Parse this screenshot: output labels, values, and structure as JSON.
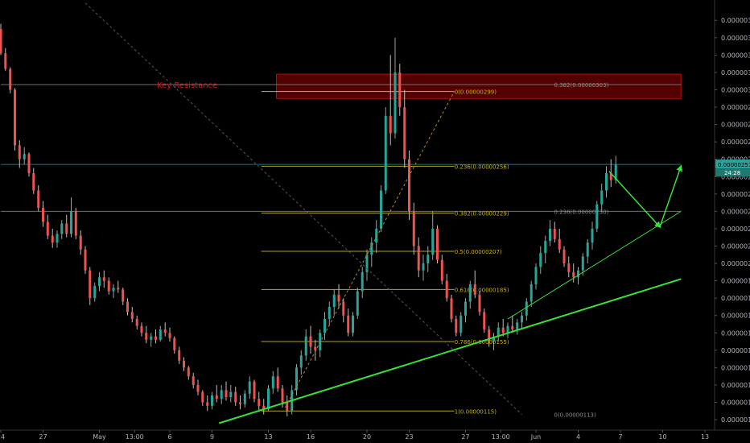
{
  "chart_data": {
    "type": "candlestick",
    "y_axis": {
      "min": 1.04e-06,
      "max": 3.48e-06,
      "ticks": [
        "0.00000110",
        "0.00000120",
        "0.00000130",
        "0.00000140",
        "0.00000150",
        "0.00000160",
        "0.00000170",
        "0.00000180",
        "0.00000190",
        "0.00000200",
        "0.00000210",
        "0.00000220",
        "0.00000230",
        "0.00000240",
        "0.00000250",
        "0.00000260",
        "0.00000270",
        "0.00000280",
        "0.00000290",
        "0.00000300",
        "0.00000310",
        "0.00000320",
        "0.00000330",
        "0.00000340"
      ]
    },
    "x_axis": {
      "ticks": [
        {
          "label": "24",
          "day": 0
        },
        {
          "label": "27",
          "day": 3
        },
        {
          "label": "May",
          "day": 7
        },
        {
          "label": "13:00",
          "day": 9.5
        },
        {
          "label": "6",
          "day": 12
        },
        {
          "label": "9",
          "day": 15
        },
        {
          "label": "13",
          "day": 19
        },
        {
          "label": "16",
          "day": 22
        },
        {
          "label": "20",
          "day": 26
        },
        {
          "label": "23",
          "day": 29
        },
        {
          "label": "27",
          "day": 33
        },
        {
          "label": "13:00",
          "day": 35.5
        },
        {
          "label": "Jun",
          "day": 38
        },
        {
          "label": "4",
          "day": 41
        },
        {
          "label": "7",
          "day": 44
        },
        {
          "label": "10",
          "day": 47
        },
        {
          "label": "13",
          "day": 50
        }
      ]
    },
    "current_price": {
      "label": "0.00000257",
      "value": 2.57e-06,
      "timer": "24:28"
    },
    "key_resistance": {
      "label": "Key Resistance",
      "zone_top": 3.09e-06,
      "zone_bottom": 2.95e-06,
      "zone_day_start": 19,
      "zone_day_end": 48.3,
      "line_value": 3.03e-06
    },
    "horizontal_lines": [
      {
        "value": 3.03e-06,
        "day_start": 0,
        "day_end": 48.3,
        "color": "#6f6f6f"
      },
      {
        "value": 2.3e-06,
        "day_start": 0,
        "day_end": 48.3,
        "color": "#6f6f6f"
      },
      {
        "value": 2.57e-06,
        "day_start": 0,
        "day_end": 48.3,
        "color": "#2d6e6e"
      }
    ],
    "fib_main": {
      "day_start": 18.5,
      "day_end": 32.2,
      "levels": [
        {
          "label": "0(0.00000299)",
          "value": 2.99e-06
        },
        {
          "label": "0.236(0.00000256)",
          "value": 2.56e-06
        },
        {
          "label": "0.382(0.00000229)",
          "value": 2.29e-06
        },
        {
          "label": "0.5(0.00000207)",
          "value": 2.07e-06
        },
        {
          "label": "0.618(0.00000185)",
          "value": 1.85e-06
        },
        {
          "label": "0.786(0.00000155)",
          "value": 1.55e-06
        },
        {
          "label": "1(0.00000115)",
          "value": 1.15e-06
        }
      ]
    },
    "fib_big_labels": [
      {
        "label": "0.382(0.00000303)",
        "value": 3.03e-06,
        "day": 37
      },
      {
        "label": "0.236(0.00000230)",
        "value": 2.3e-06,
        "day": 37
      },
      {
        "label": "0(0.00000113)",
        "value": 1.13e-06,
        "day": 37
      }
    ],
    "trendlines": [
      {
        "from": [
          15.5,
          1.08e-06
        ],
        "to": [
          48.3,
          1.91e-06
        ],
        "color": "#37e237",
        "width": 2
      },
      {
        "from": [
          36,
          1.68e-06
        ],
        "to": [
          48.3,
          2.3e-06
        ],
        "color": "#37e237",
        "width": 1
      },
      {
        "from": [
          20.2,
          1.17e-06
        ],
        "to": [
          32.2,
          2.99e-06
        ],
        "color": "#b58b2a",
        "width": 1,
        "dash": true
      },
      {
        "from": [
          6,
          3.5e-06
        ],
        "to": [
          37,
          1.13e-06
        ],
        "color": "#555555",
        "width": 1,
        "dash": true
      }
    ],
    "projection_arrows": [
      {
        "from": [
          43.2,
          2.53e-06
        ],
        "to": [
          46.8,
          2.21e-06
        ]
      },
      {
        "from": [
          46.8,
          2.21e-06
        ],
        "to": [
          48.3,
          2.56e-06
        ]
      }
    ],
    "candles": [
      {
        "d": 0.0,
        "o": 3.35,
        "h": 3.38,
        "l": 3.2,
        "c": 3.21
      },
      {
        "d": 0.33,
        "o": 3.21,
        "h": 3.24,
        "l": 3.11,
        "c": 3.12
      },
      {
        "d": 0.67,
        "o": 3.12,
        "h": 3.13,
        "l": 2.98,
        "c": 3.0
      },
      {
        "d": 1.0,
        "o": 3.0,
        "h": 3.01,
        "l": 2.65,
        "c": 2.68
      },
      {
        "d": 1.33,
        "o": 2.68,
        "h": 2.71,
        "l": 2.55,
        "c": 2.6
      },
      {
        "d": 1.67,
        "o": 2.6,
        "h": 2.67,
        "l": 2.57,
        "c": 2.63
      },
      {
        "d": 2.0,
        "o": 2.63,
        "h": 2.64,
        "l": 2.5,
        "c": 2.52
      },
      {
        "d": 2.33,
        "o": 2.52,
        "h": 2.55,
        "l": 2.4,
        "c": 2.42
      },
      {
        "d": 2.67,
        "o": 2.42,
        "h": 2.45,
        "l": 2.3,
        "c": 2.32
      },
      {
        "d": 3.0,
        "o": 2.32,
        "h": 2.36,
        "l": 2.21,
        "c": 2.24
      },
      {
        "d": 3.33,
        "o": 2.24,
        "h": 2.28,
        "l": 2.14,
        "c": 2.16
      },
      {
        "d": 3.67,
        "o": 2.16,
        "h": 2.2,
        "l": 2.09,
        "c": 2.12
      },
      {
        "d": 4.0,
        "o": 2.12,
        "h": 2.19,
        "l": 2.09,
        "c": 2.17
      },
      {
        "d": 4.33,
        "o": 2.17,
        "h": 2.25,
        "l": 2.14,
        "c": 2.23
      },
      {
        "d": 4.67,
        "o": 2.23,
        "h": 2.28,
        "l": 2.15,
        "c": 2.17
      },
      {
        "d": 5.0,
        "o": 2.17,
        "h": 2.38,
        "l": 2.15,
        "c": 2.3
      },
      {
        "d": 5.33,
        "o": 2.3,
        "h": 2.32,
        "l": 2.14,
        "c": 2.16
      },
      {
        "d": 5.67,
        "o": 2.16,
        "h": 2.19,
        "l": 2.05,
        "c": 2.08
      },
      {
        "d": 6.0,
        "o": 2.08,
        "h": 2.1,
        "l": 1.94,
        "c": 1.96
      },
      {
        "d": 6.33,
        "o": 1.96,
        "h": 1.98,
        "l": 1.76,
        "c": 1.8
      },
      {
        "d": 6.67,
        "o": 1.8,
        "h": 1.89,
        "l": 1.78,
        "c": 1.87
      },
      {
        "d": 7.0,
        "o": 1.87,
        "h": 1.95,
        "l": 1.84,
        "c": 1.92
      },
      {
        "d": 7.33,
        "o": 1.92,
        "h": 1.96,
        "l": 1.86,
        "c": 1.9
      },
      {
        "d": 7.67,
        "o": 1.9,
        "h": 1.92,
        "l": 1.82,
        "c": 1.84
      },
      {
        "d": 8.0,
        "o": 1.84,
        "h": 1.88,
        "l": 1.8,
        "c": 1.86
      },
      {
        "d": 8.33,
        "o": 1.86,
        "h": 1.9,
        "l": 1.83,
        "c": 1.85
      },
      {
        "d": 8.67,
        "o": 1.85,
        "h": 1.86,
        "l": 1.76,
        "c": 1.78
      },
      {
        "d": 9.0,
        "o": 1.78,
        "h": 1.8,
        "l": 1.7,
        "c": 1.72
      },
      {
        "d": 9.33,
        "o": 1.72,
        "h": 1.75,
        "l": 1.66,
        "c": 1.68
      },
      {
        "d": 9.67,
        "o": 1.68,
        "h": 1.7,
        "l": 1.62,
        "c": 1.64
      },
      {
        "d": 10.0,
        "o": 1.64,
        "h": 1.66,
        "l": 1.58,
        "c": 1.6
      },
      {
        "d": 10.33,
        "o": 1.6,
        "h": 1.64,
        "l": 1.54,
        "c": 1.56
      },
      {
        "d": 10.67,
        "o": 1.56,
        "h": 1.6,
        "l": 1.52,
        "c": 1.58
      },
      {
        "d": 11.0,
        "o": 1.58,
        "h": 1.62,
        "l": 1.54,
        "c": 1.56
      },
      {
        "d": 11.33,
        "o": 1.56,
        "h": 1.64,
        "l": 1.55,
        "c": 1.62
      },
      {
        "d": 11.67,
        "o": 1.62,
        "h": 1.66,
        "l": 1.58,
        "c": 1.6
      },
      {
        "d": 12.0,
        "o": 1.6,
        "h": 1.63,
        "l": 1.55,
        "c": 1.57
      },
      {
        "d": 12.33,
        "o": 1.57,
        "h": 1.58,
        "l": 1.48,
        "c": 1.5
      },
      {
        "d": 12.67,
        "o": 1.5,
        "h": 1.52,
        "l": 1.42,
        "c": 1.44
      },
      {
        "d": 13.0,
        "o": 1.44,
        "h": 1.46,
        "l": 1.38,
        "c": 1.4
      },
      {
        "d": 13.33,
        "o": 1.4,
        "h": 1.41,
        "l": 1.33,
        "c": 1.35
      },
      {
        "d": 13.67,
        "o": 1.35,
        "h": 1.37,
        "l": 1.28,
        "c": 1.3
      },
      {
        "d": 14.0,
        "o": 1.3,
        "h": 1.33,
        "l": 1.24,
        "c": 1.26
      },
      {
        "d": 14.33,
        "o": 1.26,
        "h": 1.27,
        "l": 1.18,
        "c": 1.2
      },
      {
        "d": 14.67,
        "o": 1.2,
        "h": 1.24,
        "l": 1.15,
        "c": 1.18
      },
      {
        "d": 15.0,
        "o": 1.18,
        "h": 1.26,
        "l": 1.16,
        "c": 1.24
      },
      {
        "d": 15.33,
        "o": 1.24,
        "h": 1.3,
        "l": 1.2,
        "c": 1.22
      },
      {
        "d": 15.67,
        "o": 1.22,
        "h": 1.3,
        "l": 1.19,
        "c": 1.27
      },
      {
        "d": 16.0,
        "o": 1.27,
        "h": 1.32,
        "l": 1.21,
        "c": 1.23
      },
      {
        "d": 16.33,
        "o": 1.23,
        "h": 1.3,
        "l": 1.2,
        "c": 1.26
      },
      {
        "d": 16.67,
        "o": 1.26,
        "h": 1.29,
        "l": 1.18,
        "c": 1.2
      },
      {
        "d": 17.0,
        "o": 1.2,
        "h": 1.24,
        "l": 1.16,
        "c": 1.19
      },
      {
        "d": 17.33,
        "o": 1.19,
        "h": 1.27,
        "l": 1.17,
        "c": 1.25
      },
      {
        "d": 17.67,
        "o": 1.25,
        "h": 1.35,
        "l": 1.22,
        "c": 1.32
      },
      {
        "d": 18.0,
        "o": 1.32,
        "h": 1.33,
        "l": 1.2,
        "c": 1.22
      },
      {
        "d": 18.33,
        "o": 1.22,
        "h": 1.26,
        "l": 1.15,
        "c": 1.18
      },
      {
        "d": 18.67,
        "o": 1.18,
        "h": 1.22,
        "l": 1.13,
        "c": 1.16
      },
      {
        "d": 19.0,
        "o": 1.16,
        "h": 1.3,
        "l": 1.15,
        "c": 1.28
      },
      {
        "d": 19.33,
        "o": 1.28,
        "h": 1.38,
        "l": 1.25,
        "c": 1.35
      },
      {
        "d": 19.67,
        "o": 1.35,
        "h": 1.4,
        "l": 1.26,
        "c": 1.28
      },
      {
        "d": 20.0,
        "o": 1.28,
        "h": 1.3,
        "l": 1.17,
        "c": 1.2
      },
      {
        "d": 20.33,
        "o": 1.2,
        "h": 1.24,
        "l": 1.12,
        "c": 1.15
      },
      {
        "d": 20.67,
        "o": 1.15,
        "h": 1.3,
        "l": 1.13,
        "c": 1.27
      },
      {
        "d": 21.0,
        "o": 1.27,
        "h": 1.42,
        "l": 1.24,
        "c": 1.4
      },
      {
        "d": 21.33,
        "o": 1.4,
        "h": 1.5,
        "l": 1.36,
        "c": 1.47
      },
      {
        "d": 21.67,
        "o": 1.47,
        "h": 1.62,
        "l": 1.44,
        "c": 1.58
      },
      {
        "d": 22.0,
        "o": 1.58,
        "h": 1.64,
        "l": 1.48,
        "c": 1.52
      },
      {
        "d": 22.33,
        "o": 1.52,
        "h": 1.56,
        "l": 1.44,
        "c": 1.5
      },
      {
        "d": 22.67,
        "o": 1.5,
        "h": 1.62,
        "l": 1.46,
        "c": 1.6
      },
      {
        "d": 23.0,
        "o": 1.6,
        "h": 1.72,
        "l": 1.56,
        "c": 1.68
      },
      {
        "d": 23.33,
        "o": 1.68,
        "h": 1.78,
        "l": 1.64,
        "c": 1.75
      },
      {
        "d": 23.67,
        "o": 1.75,
        "h": 1.85,
        "l": 1.7,
        "c": 1.82
      },
      {
        "d": 24.0,
        "o": 1.82,
        "h": 1.88,
        "l": 1.74,
        "c": 1.78
      },
      {
        "d": 24.33,
        "o": 1.78,
        "h": 1.8,
        "l": 1.66,
        "c": 1.7
      },
      {
        "d": 24.67,
        "o": 1.7,
        "h": 1.74,
        "l": 1.58,
        "c": 1.6
      },
      {
        "d": 25.0,
        "o": 1.6,
        "h": 1.72,
        "l": 1.58,
        "c": 1.7
      },
      {
        "d": 25.33,
        "o": 1.7,
        "h": 1.86,
        "l": 1.68,
        "c": 1.84
      },
      {
        "d": 25.67,
        "o": 1.84,
        "h": 1.98,
        "l": 1.8,
        "c": 1.95
      },
      {
        "d": 26.0,
        "o": 1.95,
        "h": 2.08,
        "l": 1.9,
        "c": 2.05
      },
      {
        "d": 26.33,
        "o": 2.05,
        "h": 2.15,
        "l": 1.98,
        "c": 2.12
      },
      {
        "d": 26.67,
        "o": 2.12,
        "h": 2.25,
        "l": 2.06,
        "c": 2.2
      },
      {
        "d": 27.0,
        "o": 2.2,
        "h": 2.45,
        "l": 2.18,
        "c": 2.42
      },
      {
        "d": 27.33,
        "o": 2.42,
        "h": 2.9,
        "l": 2.4,
        "c": 2.85
      },
      {
        "d": 27.67,
        "o": 2.85,
        "h": 3.2,
        "l": 2.68,
        "c": 2.75
      },
      {
        "d": 28.0,
        "o": 2.75,
        "h": 3.3,
        "l": 2.72,
        "c": 3.1
      },
      {
        "d": 28.33,
        "o": 3.1,
        "h": 3.15,
        "l": 2.85,
        "c": 2.9
      },
      {
        "d": 28.67,
        "o": 2.9,
        "h": 3.0,
        "l": 2.55,
        "c": 2.6
      },
      {
        "d": 29.0,
        "o": 2.6,
        "h": 2.65,
        "l": 2.25,
        "c": 2.3
      },
      {
        "d": 29.33,
        "o": 2.3,
        "h": 2.35,
        "l": 2.05,
        "c": 2.1
      },
      {
        "d": 29.67,
        "o": 2.1,
        "h": 2.15,
        "l": 1.92,
        "c": 1.96
      },
      {
        "d": 30.0,
        "o": 1.96,
        "h": 2.05,
        "l": 1.9,
        "c": 2.0
      },
      {
        "d": 30.33,
        "o": 2.0,
        "h": 2.1,
        "l": 1.95,
        "c": 2.05
      },
      {
        "d": 30.67,
        "o": 2.05,
        "h": 2.3,
        "l": 2.02,
        "c": 2.2
      },
      {
        "d": 31.0,
        "o": 2.2,
        "h": 2.22,
        "l": 2.0,
        "c": 2.02
      },
      {
        "d": 31.33,
        "o": 2.02,
        "h": 2.05,
        "l": 1.88,
        "c": 1.9
      },
      {
        "d": 31.67,
        "o": 1.9,
        "h": 1.94,
        "l": 1.78,
        "c": 1.8
      },
      {
        "d": 32.0,
        "o": 1.8,
        "h": 1.82,
        "l": 1.66,
        "c": 1.68
      },
      {
        "d": 32.33,
        "o": 1.68,
        "h": 1.7,
        "l": 1.58,
        "c": 1.6
      },
      {
        "d": 32.67,
        "o": 1.6,
        "h": 1.72,
        "l": 1.58,
        "c": 1.7
      },
      {
        "d": 33.0,
        "o": 1.7,
        "h": 1.8,
        "l": 1.66,
        "c": 1.78
      },
      {
        "d": 33.33,
        "o": 1.78,
        "h": 1.9,
        "l": 1.74,
        "c": 1.88
      },
      {
        "d": 33.67,
        "o": 1.88,
        "h": 1.96,
        "l": 1.8,
        "c": 1.82
      },
      {
        "d": 34.0,
        "o": 1.82,
        "h": 1.84,
        "l": 1.7,
        "c": 1.72
      },
      {
        "d": 34.33,
        "o": 1.72,
        "h": 1.74,
        "l": 1.6,
        "c": 1.62
      },
      {
        "d": 34.67,
        "o": 1.62,
        "h": 1.64,
        "l": 1.52,
        "c": 1.55
      },
      {
        "d": 35.0,
        "o": 1.55,
        "h": 1.6,
        "l": 1.5,
        "c": 1.58
      },
      {
        "d": 35.33,
        "o": 1.58,
        "h": 1.66,
        "l": 1.55,
        "c": 1.63
      },
      {
        "d": 35.67,
        "o": 1.63,
        "h": 1.68,
        "l": 1.58,
        "c": 1.6
      },
      {
        "d": 36.0,
        "o": 1.6,
        "h": 1.66,
        "l": 1.57,
        "c": 1.64
      },
      {
        "d": 36.33,
        "o": 1.64,
        "h": 1.7,
        "l": 1.6,
        "c": 1.62
      },
      {
        "d": 36.67,
        "o": 1.62,
        "h": 1.68,
        "l": 1.59,
        "c": 1.66
      },
      {
        "d": 37.0,
        "o": 1.66,
        "h": 1.72,
        "l": 1.62,
        "c": 1.7
      },
      {
        "d": 37.33,
        "o": 1.7,
        "h": 1.8,
        "l": 1.67,
        "c": 1.78
      },
      {
        "d": 37.67,
        "o": 1.78,
        "h": 1.9,
        "l": 1.75,
        "c": 1.88
      },
      {
        "d": 38.0,
        "o": 1.88,
        "h": 2.0,
        "l": 1.85,
        "c": 1.98
      },
      {
        "d": 38.33,
        "o": 1.98,
        "h": 2.1,
        "l": 1.94,
        "c": 2.06
      },
      {
        "d": 38.67,
        "o": 2.06,
        "h": 2.16,
        "l": 2.0,
        "c": 2.13
      },
      {
        "d": 39.0,
        "o": 2.13,
        "h": 2.25,
        "l": 2.1,
        "c": 2.2
      },
      {
        "d": 39.33,
        "o": 2.2,
        "h": 2.24,
        "l": 2.12,
        "c": 2.14
      },
      {
        "d": 39.67,
        "o": 2.14,
        "h": 2.2,
        "l": 2.06,
        "c": 2.08
      },
      {
        "d": 40.0,
        "o": 2.08,
        "h": 2.1,
        "l": 1.98,
        "c": 2.0
      },
      {
        "d": 40.33,
        "o": 2.0,
        "h": 2.04,
        "l": 1.92,
        "c": 1.95
      },
      {
        "d": 40.67,
        "o": 1.95,
        "h": 2.0,
        "l": 1.89,
        "c": 1.92
      },
      {
        "d": 41.0,
        "o": 1.92,
        "h": 1.98,
        "l": 1.88,
        "c": 1.96
      },
      {
        "d": 41.33,
        "o": 1.96,
        "h": 2.06,
        "l": 1.93,
        "c": 2.04
      },
      {
        "d": 41.67,
        "o": 2.04,
        "h": 2.14,
        "l": 2.0,
        "c": 2.12
      },
      {
        "d": 42.0,
        "o": 2.12,
        "h": 2.24,
        "l": 2.08,
        "c": 2.2
      },
      {
        "d": 42.33,
        "o": 2.2,
        "h": 2.36,
        "l": 2.18,
        "c": 2.34
      },
      {
        "d": 42.67,
        "o": 2.34,
        "h": 2.46,
        "l": 2.3,
        "c": 2.42
      },
      {
        "d": 43.0,
        "o": 2.42,
        "h": 2.56,
        "l": 2.38,
        "c": 2.52
      },
      {
        "d": 43.33,
        "o": 2.52,
        "h": 2.6,
        "l": 2.44,
        "c": 2.48
      },
      {
        "d": 43.67,
        "o": 2.48,
        "h": 2.62,
        "l": 2.46,
        "c": 2.57
      }
    ]
  }
}
